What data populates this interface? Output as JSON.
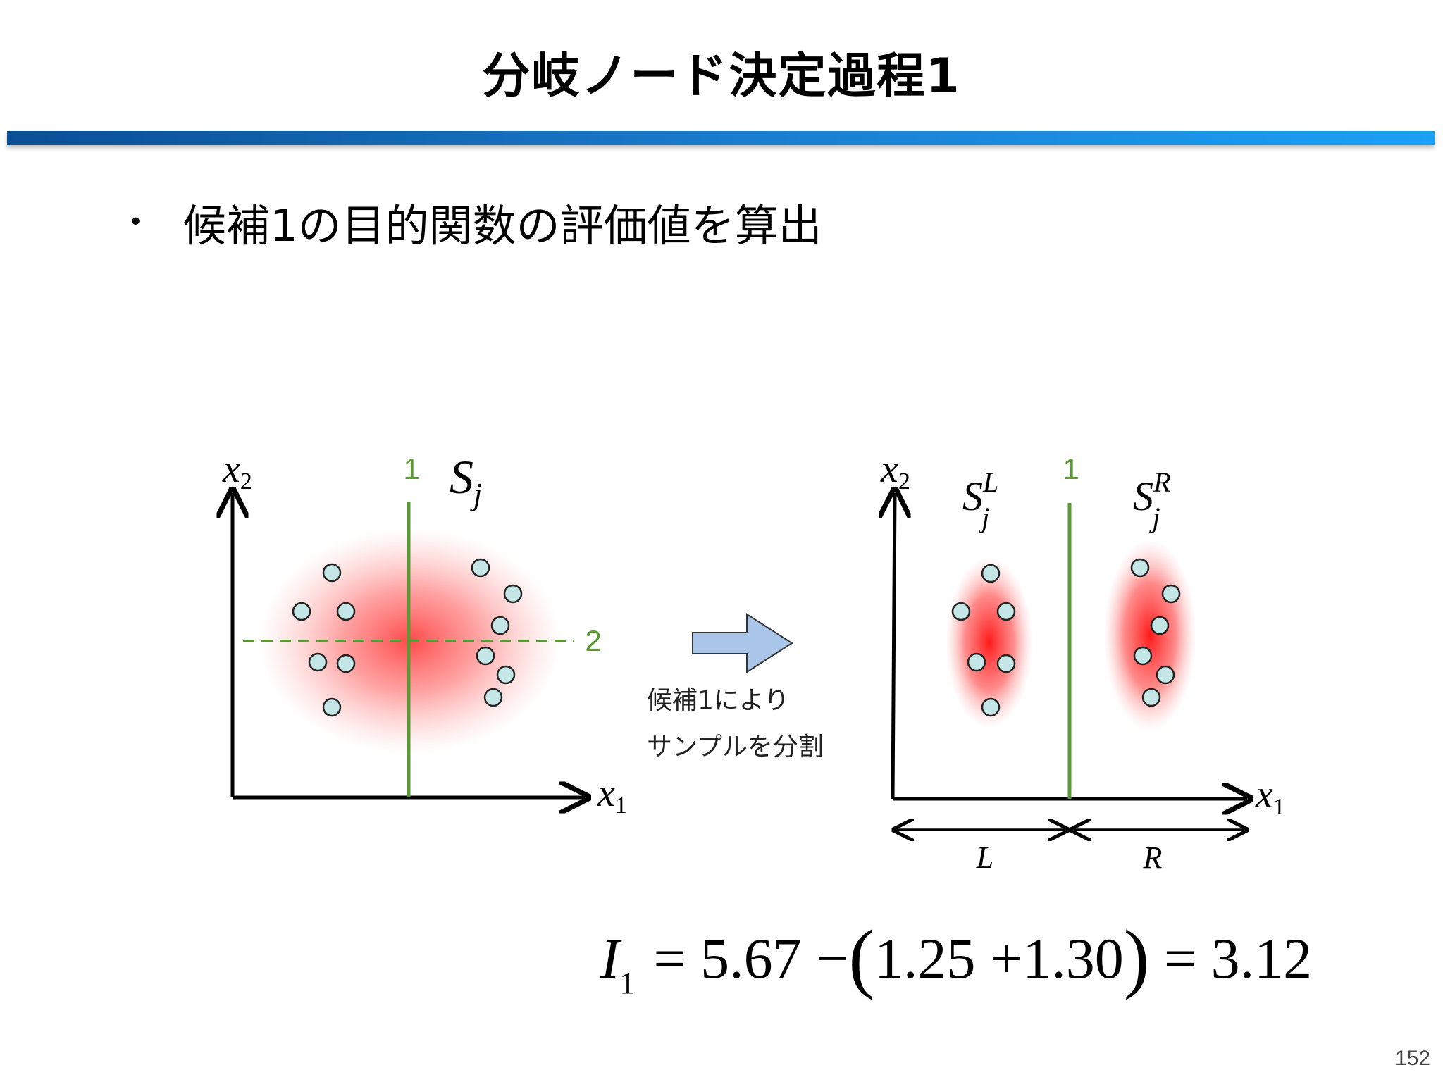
{
  "title": "分岐ノード決定過程1",
  "bullet": "候補1の目的関数の評価値を算出",
  "left_plot": {
    "y_axis_var": "x",
    "y_axis_sub": "2",
    "x_axis_var": "x",
    "x_axis_sub": "1",
    "split_1_label": "1",
    "split_2_label": "2",
    "set_var": "S",
    "set_sub": "j"
  },
  "arrow_caption": {
    "line1": "候補1によりサンプルを分割",
    "line1a": "候補1により",
    "line2": "サンプルを分割"
  },
  "right_plot": {
    "y_axis_var": "x",
    "y_axis_sub": "2",
    "x_axis_var": "x",
    "x_axis_sub": "1",
    "split_1_label": "1",
    "left_set_var": "S",
    "left_set_sub": "j",
    "left_set_sup": "L",
    "right_set_var": "S",
    "right_set_sub": "j",
    "right_set_sup": "R",
    "left_span_label": "L",
    "right_span_label": "R"
  },
  "formula": {
    "var": "I",
    "sub": "1",
    "eq1": "=",
    "total": "5.67",
    "minus": "−",
    "open": "(",
    "left": "1.25",
    "plus": "+",
    "right": "1.30",
    "close": ")",
    "eq2": "=",
    "result": "3.12"
  },
  "page_number": "152",
  "colors": {
    "split_line": "#5a9a34",
    "point_fill": "#c5e6e6",
    "blob": "#ff2a2a",
    "arrow_fill": "#a9c6e8",
    "title_bar": "#1a7fd0"
  }
}
